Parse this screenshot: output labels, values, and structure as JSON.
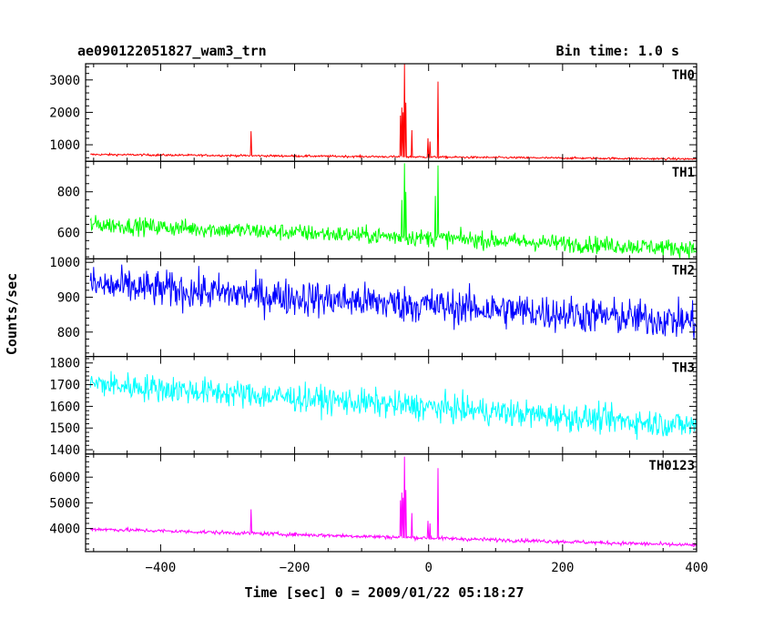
{
  "chart_data": {
    "type": "line",
    "title": "ae090122051827_wam3_trn",
    "subtitle": "Bin time: 1.0 s",
    "xlabel": "Time [sec] 0 = 2009/01/22 05:18:27",
    "ylabel": "Counts/sec",
    "xlim": [
      -512,
      400
    ],
    "xticks": [
      -400,
      -200,
      0,
      200,
      400
    ],
    "xtick_labels": [
      "−400",
      "−200",
      "0",
      "200",
      "400"
    ],
    "grid": false,
    "panels": [
      {
        "name": "TH0",
        "color": "#ff0000",
        "ylim": [
          490,
          3500
        ],
        "yticks": [
          1000,
          2000,
          3000
        ],
        "baseline": {
          "start": 700,
          "end": 560
        },
        "noise": 30,
        "spikes": [
          [
            -265,
            1420
          ],
          [
            -42,
            1900
          ],
          [
            -40,
            2150
          ],
          [
            -38,
            2000
          ],
          [
            -36,
            3500
          ],
          [
            -34,
            2300
          ],
          [
            -25,
            1450
          ],
          [
            -1,
            1200
          ],
          [
            2,
            1100
          ],
          [
            14,
            2950
          ]
        ]
      },
      {
        "name": "TH1",
        "color": "#00ff00",
        "ylim": [
          470,
          950
        ],
        "yticks": [
          600,
          800
        ],
        "baseline": {
          "start": 640,
          "end": 520
        },
        "noise": 40,
        "spikes": [
          [
            -40,
            760
          ],
          [
            -36,
            940
          ],
          [
            -34,
            800
          ],
          [
            14,
            930
          ],
          [
            10,
            780
          ]
        ]
      },
      {
        "name": "TH2",
        "color": "#0000ff",
        "ylim": [
          730,
          1010
        ],
        "yticks": [
          800,
          900,
          1000
        ],
        "baseline": {
          "start": 935,
          "end": 830
        },
        "noise": 50,
        "spikes": []
      },
      {
        "name": "TH3",
        "color": "#00ffff",
        "ylim": [
          1380,
          1830
        ],
        "yticks": [
          1400,
          1500,
          1600,
          1700,
          1800
        ],
        "baseline": {
          "start": 1705,
          "end": 1510
        },
        "noise": 60,
        "spikes": []
      },
      {
        "name": "TH0123",
        "color": "#ff00ff",
        "ylim": [
          3100,
          6900
        ],
        "yticks": [
          4000,
          5000,
          6000
        ],
        "baseline": {
          "start": 3980,
          "end": 3350
        },
        "noise": 70,
        "spikes": [
          [
            -265,
            4750
          ],
          [
            -42,
            5100
          ],
          [
            -40,
            5400
          ],
          [
            -38,
            5200
          ],
          [
            -36,
            6800
          ],
          [
            -34,
            5500
          ],
          [
            -25,
            4600
          ],
          [
            -1,
            4300
          ],
          [
            2,
            4200
          ],
          [
            14,
            6350
          ]
        ]
      }
    ]
  }
}
